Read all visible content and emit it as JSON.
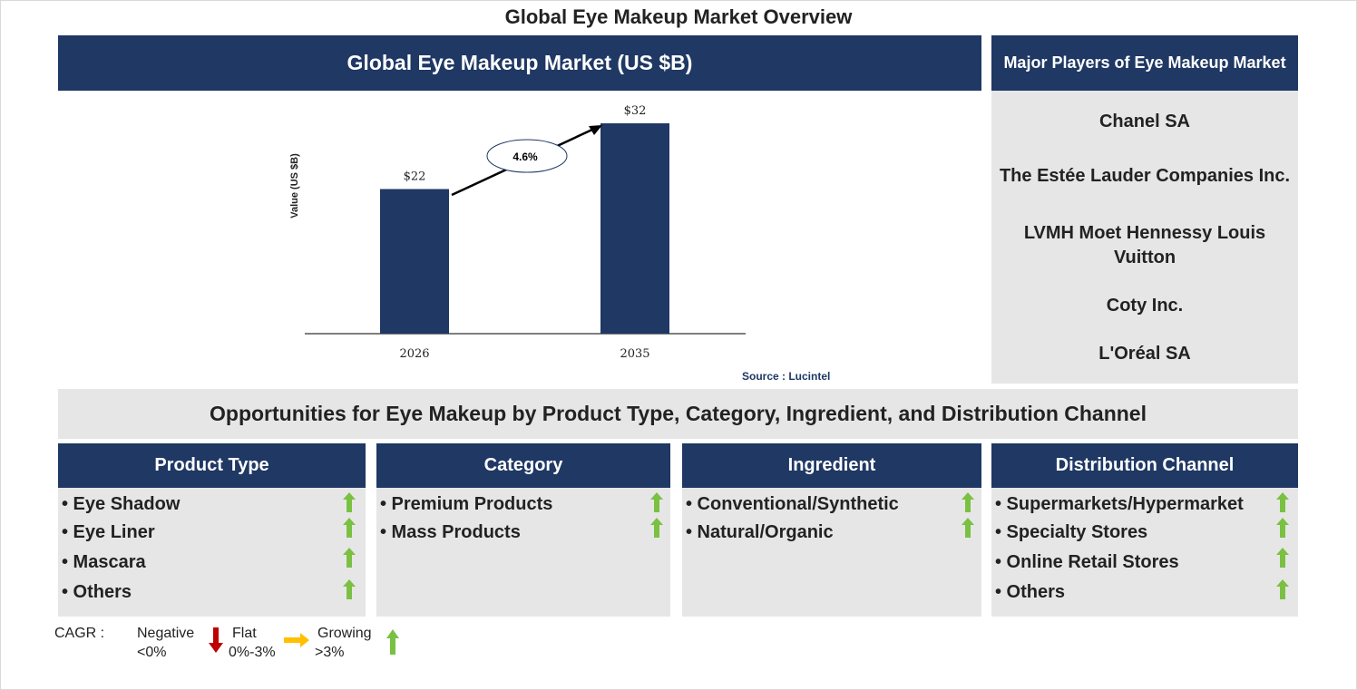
{
  "title": "Global Eye Makeup Market Overview",
  "market_header": "Global Eye Makeup Market (US $B)",
  "players_header": "Major Players of Eye Makeup Market",
  "players": [
    "Chanel SA",
    "The Estée Lauder Companies Inc.",
    "LVMH Moet Hennessy Louis",
    "Vuitton",
    "Coty Inc.",
    "L'Oréal SA"
  ],
  "chart_data": {
    "type": "bar",
    "categories": [
      "2026",
      "2035"
    ],
    "values": [
      22,
      32
    ],
    "value_labels": [
      "$22",
      "$32"
    ],
    "ylabel": "Value (US $B)",
    "ylim": [
      0,
      32
    ],
    "cagr_label": "4.6%",
    "bar_color": "#1f3864",
    "grid": false
  },
  "source": "Source : Lucintel",
  "opportunities_title": "Opportunities for Eye Makeup by Product Type, Category, Ingredient, and Distribution Channel",
  "segments": [
    {
      "header": "Product Type",
      "items": [
        "• Eye Shadow",
        "• Eye Liner",
        "• Mascara",
        "• Others"
      ]
    },
    {
      "header": "Category",
      "items": [
        "• Premium Products",
        "• Mass Products"
      ]
    },
    {
      "header": "Ingredient",
      "items": [
        "• Conventional/Synthetic",
        "• Natural/Organic"
      ]
    },
    {
      "header": "Distribution Channel",
      "items": [
        "• Supermarkets/Hypermarket",
        "• Specialty Stores",
        "• Online Retail Stores",
        "• Others"
      ]
    }
  ],
  "legend": {
    "label": "CAGR :",
    "negative": "Negative",
    "negative_range": "<0%",
    "flat": "Flat",
    "flat_range": "0%-3%",
    "growing": "Growing",
    "growing_range": ">3%"
  },
  "colors": {
    "navy": "#1f3864",
    "grey": "#e7e6e6",
    "growth_arrow": "#7ac143",
    "negative_arrow": "#c00000",
    "flat_arrow": "#ffc000"
  }
}
